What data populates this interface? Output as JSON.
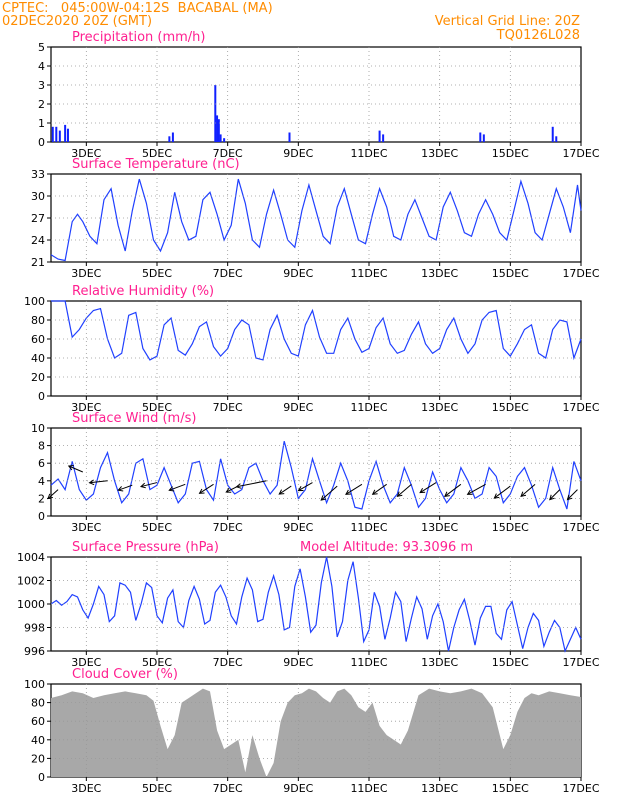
{
  "header": {
    "line1": "CPTEC:   045:00W-04:12S  BACABAL (MA)",
    "line2": "02DEC2020 20Z (GMT)",
    "right1": "Vertical Grid Line: 20Z",
    "right2": "TQ0126L028"
  },
  "colors": {
    "header": "#ff8c00",
    "title": "#ff2090",
    "series": "#2040ff",
    "bars": "#1020ff",
    "cloud": "#a8a8a8",
    "grid": "#999999"
  },
  "x_tick_labels": [
    "3DEC",
    "5DEC",
    "7DEC",
    "9DEC",
    "11DEC",
    "13DEC",
    "15DEC",
    "17DEC"
  ],
  "chart_data": [
    {
      "id": "precip",
      "type": "bar",
      "title": "Precipitation (mm/h)",
      "y_ticks": [
        "5",
        "4",
        "3",
        "2",
        "1",
        "0"
      ],
      "ylim": [
        0,
        5
      ],
      "x_range_days": [
        2.0,
        17.0
      ],
      "bars": [
        {
          "x": 2.05,
          "v": 0.8
        },
        {
          "x": 2.15,
          "v": 0.8
        },
        {
          "x": 2.25,
          "v": 0.6
        },
        {
          "x": 2.4,
          "v": 0.9
        },
        {
          "x": 2.48,
          "v": 0.7
        },
        {
          "x": 5.35,
          "v": 0.3
        },
        {
          "x": 5.45,
          "v": 0.5
        },
        {
          "x": 6.65,
          "v": 3.0
        },
        {
          "x": 6.7,
          "v": 1.4
        },
        {
          "x": 6.75,
          "v": 1.2
        },
        {
          "x": 6.8,
          "v": 0.4
        },
        {
          "x": 6.9,
          "v": 0.2
        },
        {
          "x": 8.75,
          "v": 0.5
        },
        {
          "x": 11.3,
          "v": 0.6
        },
        {
          "x": 11.4,
          "v": 0.4
        },
        {
          "x": 14.15,
          "v": 0.5
        },
        {
          "x": 14.25,
          "v": 0.4
        },
        {
          "x": 16.2,
          "v": 0.8
        },
        {
          "x": 16.3,
          "v": 0.3
        }
      ]
    },
    {
      "id": "temp",
      "type": "line",
      "title": "Surface Temperature (nC)",
      "y_ticks": [
        "33",
        "30",
        "27",
        "24",
        "21"
      ],
      "ylim": [
        21,
        33
      ],
      "x_range_days": [
        2.0,
        17.0
      ],
      "x": [
        2.0,
        2.2,
        2.4,
        2.6,
        2.75,
        2.9,
        3.1,
        3.3,
        3.5,
        3.7,
        3.9,
        4.1,
        4.3,
        4.5,
        4.7,
        4.9,
        5.1,
        5.3,
        5.5,
        5.7,
        5.9,
        6.1,
        6.3,
        6.5,
        6.7,
        6.9,
        7.1,
        7.3,
        7.5,
        7.7,
        7.9,
        8.1,
        8.3,
        8.5,
        8.7,
        8.9,
        9.1,
        9.3,
        9.5,
        9.7,
        9.9,
        10.1,
        10.3,
        10.5,
        10.7,
        10.9,
        11.1,
        11.3,
        11.5,
        11.7,
        11.9,
        12.1,
        12.3,
        12.5,
        12.7,
        12.9,
        13.1,
        13.3,
        13.5,
        13.7,
        13.9,
        14.1,
        14.3,
        14.5,
        14.7,
        14.9,
        15.1,
        15.3,
        15.5,
        15.7,
        15.9,
        16.1,
        16.3,
        16.5,
        16.7,
        16.9,
        17.0
      ],
      "values": [
        22,
        21.4,
        21.2,
        26.5,
        27.5,
        26.5,
        24.5,
        23.5,
        29.5,
        31.0,
        26.0,
        22.5,
        28.0,
        32.3,
        29.0,
        24.0,
        22.5,
        25.0,
        30.5,
        26.5,
        24.0,
        24.5,
        29.5,
        30.5,
        27.5,
        24.0,
        26.0,
        32.3,
        29.0,
        24.0,
        23.0,
        27.5,
        30.8,
        27.5,
        24.0,
        23.0,
        28.0,
        31.5,
        28.0,
        24.5,
        23.5,
        28.5,
        31.0,
        27.5,
        24.0,
        23.5,
        27.5,
        31.0,
        28.5,
        24.5,
        24.0,
        27.5,
        29.5,
        27.0,
        24.5,
        24.0,
        28.5,
        30.5,
        28.0,
        25.0,
        24.5,
        27.5,
        29.5,
        27.5,
        25.0,
        24.0,
        28.0,
        32.0,
        29.0,
        25.0,
        24.0,
        27.5,
        31.0,
        28.5,
        25.0,
        31.5,
        28.0
      ]
    },
    {
      "id": "rh",
      "type": "line",
      "title": "Relative Humidity (%)",
      "y_ticks": [
        "100",
        "80",
        "60",
        "40",
        "20",
        "0"
      ],
      "ylim": [
        0,
        100
      ],
      "x_range_days": [
        2.0,
        17.0
      ],
      "x": [
        2.0,
        2.2,
        2.4,
        2.6,
        2.8,
        3.0,
        3.2,
        3.4,
        3.6,
        3.8,
        4.0,
        4.2,
        4.4,
        4.6,
        4.8,
        5.0,
        5.2,
        5.4,
        5.6,
        5.8,
        6.0,
        6.2,
        6.4,
        6.6,
        6.8,
        7.0,
        7.2,
        7.4,
        7.6,
        7.8,
        8.0,
        8.2,
        8.4,
        8.6,
        8.8,
        9.0,
        9.2,
        9.4,
        9.6,
        9.8,
        10.0,
        10.2,
        10.4,
        10.6,
        10.8,
        11.0,
        11.2,
        11.4,
        11.6,
        11.8,
        12.0,
        12.2,
        12.4,
        12.6,
        12.8,
        13.0,
        13.2,
        13.4,
        13.6,
        13.8,
        14.0,
        14.2,
        14.4,
        14.6,
        14.8,
        15.0,
        15.2,
        15.4,
        15.6,
        15.8,
        16.0,
        16.2,
        16.4,
        16.6,
        16.8,
        17.0
      ],
      "values": [
        100,
        100,
        100,
        62,
        70,
        82,
        90,
        92,
        60,
        40,
        45,
        85,
        88,
        50,
        38,
        42,
        75,
        82,
        48,
        43,
        55,
        73,
        78,
        52,
        42,
        50,
        70,
        80,
        75,
        40,
        38,
        70,
        85,
        60,
        45,
        42,
        75,
        90,
        62,
        45,
        45,
        70,
        82,
        60,
        46,
        50,
        72,
        82,
        55,
        45,
        48,
        65,
        78,
        55,
        45,
        50,
        70,
        82,
        60,
        45,
        55,
        80,
        88,
        90,
        50,
        42,
        55,
        70,
        75,
        45,
        40,
        70,
        80,
        78,
        40,
        60
      ]
    },
    {
      "id": "wind",
      "type": "line",
      "title": "Surface Wind (m/s)",
      "y_ticks": [
        "10",
        "8",
        "6",
        "4",
        "2",
        "0"
      ],
      "ylim": [
        0,
        10
      ],
      "x_range_days": [
        2.0,
        17.0
      ],
      "x": [
        2.0,
        2.2,
        2.4,
        2.6,
        2.8,
        3.0,
        3.2,
        3.4,
        3.6,
        3.8,
        4.0,
        4.2,
        4.4,
        4.6,
        4.8,
        5.0,
        5.2,
        5.4,
        5.6,
        5.8,
        6.0,
        6.2,
        6.4,
        6.6,
        6.8,
        7.0,
        7.2,
        7.4,
        7.6,
        7.8,
        8.0,
        8.2,
        8.4,
        8.6,
        8.8,
        9.0,
        9.2,
        9.4,
        9.6,
        9.8,
        10.0,
        10.2,
        10.4,
        10.6,
        10.8,
        11.0,
        11.2,
        11.4,
        11.6,
        11.8,
        12.0,
        12.2,
        12.4,
        12.6,
        12.8,
        13.0,
        13.2,
        13.4,
        13.6,
        13.8,
        14.0,
        14.2,
        14.4,
        14.6,
        14.8,
        15.0,
        15.2,
        15.4,
        15.6,
        15.8,
        16.0,
        16.2,
        16.4,
        16.6,
        16.8,
        17.0
      ],
      "values": [
        3.5,
        4.2,
        3.0,
        6.2,
        3.0,
        1.8,
        2.5,
        5.5,
        7.2,
        4.0,
        1.5,
        2.5,
        6.0,
        6.5,
        3.0,
        3.5,
        5.5,
        3.5,
        1.5,
        2.5,
        6.0,
        6.2,
        3.0,
        1.8,
        6.5,
        3.5,
        2.5,
        3.0,
        5.5,
        6.0,
        4.0,
        2.5,
        3.5,
        8.5,
        5.5,
        2.0,
        3.0,
        6.5,
        4.0,
        1.5,
        3.5,
        6.0,
        4.0,
        1.0,
        0.8,
        4.0,
        6.2,
        3.5,
        1.5,
        2.5,
        5.5,
        3.5,
        1.0,
        2.0,
        5.0,
        3.0,
        1.5,
        2.5,
        5.5,
        4.0,
        2.0,
        2.5,
        5.5,
        4.5,
        1.5,
        2.5,
        4.5,
        5.5,
        3.5,
        1.0,
        2.0,
        5.5,
        3.0,
        0.8,
        6.2,
        4.0
      ],
      "arrows": [
        {
          "x": 2.2,
          "y": 3.0,
          "dx": -10,
          "dy": 9
        },
        {
          "x": 2.9,
          "y": 5.0,
          "dx": -14,
          "dy": -6
        },
        {
          "x": 3.6,
          "y": 4.0,
          "dx": -18,
          "dy": 2
        },
        {
          "x": 4.3,
          "y": 3.5,
          "dx": -14,
          "dy": 5
        },
        {
          "x": 5.0,
          "y": 3.8,
          "dx": -16,
          "dy": 4
        },
        {
          "x": 5.8,
          "y": 3.6,
          "dx": -16,
          "dy": 6
        },
        {
          "x": 6.6,
          "y": 3.6,
          "dx": -14,
          "dy": 9
        },
        {
          "x": 7.3,
          "y": 3.4,
          "dx": -12,
          "dy": 6
        },
        {
          "x": 8.1,
          "y": 4.0,
          "dx": -30,
          "dy": 6
        },
        {
          "x": 8.8,
          "y": 3.4,
          "dx": -12,
          "dy": 8
        },
        {
          "x": 9.4,
          "y": 3.8,
          "dx": -14,
          "dy": 8
        },
        {
          "x": 10.1,
          "y": 3.4,
          "dx": -16,
          "dy": 14
        },
        {
          "x": 10.8,
          "y": 3.6,
          "dx": -16,
          "dy": 10
        },
        {
          "x": 11.5,
          "y": 3.6,
          "dx": -14,
          "dy": 10
        },
        {
          "x": 12.2,
          "y": 3.6,
          "dx": -14,
          "dy": 12
        },
        {
          "x": 12.9,
          "y": 3.8,
          "dx": -16,
          "dy": 10
        },
        {
          "x": 13.6,
          "y": 3.6,
          "dx": -16,
          "dy": 12
        },
        {
          "x": 14.3,
          "y": 3.6,
          "dx": -18,
          "dy": 10
        },
        {
          "x": 15.0,
          "y": 3.4,
          "dx": -16,
          "dy": 12
        },
        {
          "x": 15.7,
          "y": 3.6,
          "dx": -14,
          "dy": 12
        },
        {
          "x": 16.4,
          "y": 3.0,
          "dx": -10,
          "dy": 10
        },
        {
          "x": 16.9,
          "y": 3.0,
          "dx": -10,
          "dy": 10
        }
      ]
    },
    {
      "id": "pres",
      "type": "line",
      "title": "Surface Pressure (hPa)",
      "extra_label": "Model Altitude: 93.3096 m",
      "y_ticks": [
        "1004",
        "1002",
        "1000",
        "998",
        "996"
      ],
      "ylim": [
        996,
        1004
      ],
      "x_range_days": [
        2.0,
        17.0
      ],
      "x": [
        2.0,
        2.15,
        2.3,
        2.45,
        2.6,
        2.75,
        2.9,
        3.05,
        3.2,
        3.35,
        3.5,
        3.65,
        3.8,
        3.95,
        4.1,
        4.25,
        4.4,
        4.55,
        4.7,
        4.85,
        5.0,
        5.15,
        5.3,
        5.45,
        5.6,
        5.75,
        5.9,
        6.05,
        6.2,
        6.35,
        6.5,
        6.65,
        6.8,
        6.95,
        7.1,
        7.25,
        7.4,
        7.55,
        7.7,
        7.85,
        8.0,
        8.15,
        8.3,
        8.45,
        8.6,
        8.75,
        8.9,
        9.05,
        9.2,
        9.35,
        9.5,
        9.65,
        9.8,
        9.95,
        10.1,
        10.25,
        10.4,
        10.55,
        10.7,
        10.85,
        11.0,
        11.15,
        11.3,
        11.45,
        11.6,
        11.75,
        11.9,
        12.05,
        12.2,
        12.35,
        12.5,
        12.65,
        12.8,
        12.95,
        13.1,
        13.25,
        13.4,
        13.55,
        13.7,
        13.85,
        14.0,
        14.15,
        14.3,
        14.45,
        14.6,
        14.75,
        14.9,
        15.05,
        15.2,
        15.35,
        15.5,
        15.65,
        15.8,
        15.95,
        16.1,
        16.25,
        16.4,
        16.55,
        16.7,
        16.85,
        17.0
      ],
      "values": [
        1000.0,
        1000.3,
        999.9,
        1000.2,
        1000.8,
        1000.6,
        999.5,
        998.8,
        1000.0,
        1001.5,
        1000.8,
        998.5,
        999.0,
        1001.8,
        1001.6,
        1001.0,
        998.6,
        1000.0,
        1001.8,
        1001.4,
        999.0,
        998.4,
        1000.5,
        1001.2,
        998.5,
        998.0,
        1000.3,
        1001.5,
        1000.4,
        998.3,
        998.6,
        1001.0,
        1001.6,
        1000.6,
        999.0,
        998.3,
        1000.6,
        1002.2,
        1001.2,
        998.5,
        998.7,
        1001.0,
        1002.4,
        1000.8,
        997.8,
        998.0,
        1001.5,
        1003.0,
        1000.6,
        997.6,
        998.2,
        1001.8,
        1004.0,
        1001.5,
        997.2,
        998.5,
        1002.0,
        1003.6,
        1000.5,
        996.8,
        997.8,
        1001.0,
        999.8,
        997.0,
        998.8,
        1001.0,
        1000.2,
        996.8,
        998.8,
        1000.6,
        999.6,
        997.0,
        999.0,
        1000.0,
        998.5,
        996.0,
        998.0,
        999.5,
        1000.4,
        998.6,
        996.5,
        998.8,
        999.8,
        999.8,
        997.5,
        997.0,
        999.5,
        1000.2,
        998.2,
        996.2,
        998.0,
        999.2,
        998.6,
        996.4,
        997.6,
        998.6,
        998.0,
        996.0,
        997.0,
        998.0,
        997.0
      ]
    },
    {
      "id": "cloud",
      "type": "area",
      "title": "Cloud Cover (%)",
      "y_ticks": [
        "100",
        "80",
        "60",
        "40",
        "20",
        "0"
      ],
      "ylim": [
        0,
        100
      ],
      "x_range_days": [
        2.0,
        17.0
      ],
      "x": [
        2.0,
        2.3,
        2.6,
        2.9,
        3.2,
        3.5,
        3.8,
        4.1,
        4.4,
        4.7,
        4.9,
        5.1,
        5.3,
        5.5,
        5.7,
        5.9,
        6.1,
        6.3,
        6.5,
        6.7,
        6.9,
        7.1,
        7.3,
        7.5,
        7.7,
        7.9,
        8.1,
        8.3,
        8.5,
        8.7,
        8.9,
        9.1,
        9.3,
        9.5,
        9.7,
        9.9,
        10.1,
        10.3,
        10.5,
        10.7,
        10.9,
        11.1,
        11.3,
        11.5,
        11.7,
        11.9,
        12.1,
        12.4,
        12.7,
        13.0,
        13.3,
        13.6,
        13.9,
        14.2,
        14.5,
        14.8,
        15.0,
        15.2,
        15.4,
        15.6,
        15.8,
        16.1,
        16.4,
        16.7,
        17.0
      ],
      "values": [
        85,
        88,
        92,
        90,
        85,
        88,
        90,
        92,
        90,
        88,
        82,
        55,
        30,
        45,
        80,
        85,
        90,
        95,
        92,
        50,
        30,
        35,
        40,
        5,
        45,
        20,
        0,
        15,
        60,
        80,
        88,
        90,
        95,
        92,
        85,
        80,
        92,
        95,
        88,
        75,
        70,
        80,
        55,
        45,
        40,
        35,
        50,
        88,
        95,
        92,
        90,
        92,
        95,
        90,
        75,
        30,
        45,
        70,
        85,
        90,
        88,
        92,
        90,
        88,
        86
      ]
    }
  ]
}
